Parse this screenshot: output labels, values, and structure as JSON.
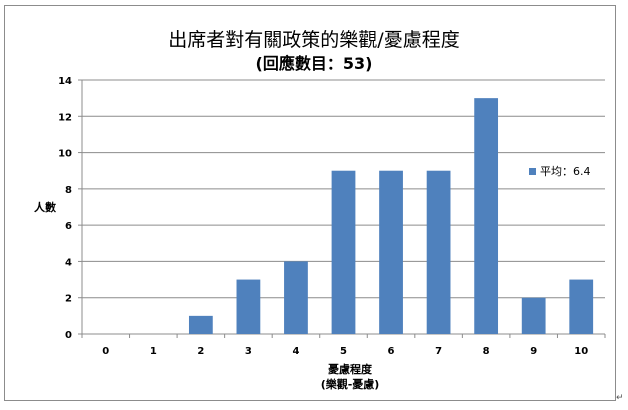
{
  "chart_data": {
    "type": "bar",
    "title": "出席者對有關政策的樂觀/憂慮程度",
    "subtitle": "(回應數目：53)",
    "xlabel": "憂慮程度",
    "xlabel_sub": "(樂觀-憂慮)",
    "ylabel": "人數",
    "categories": [
      "0",
      "1",
      "2",
      "3",
      "4",
      "5",
      "6",
      "7",
      "8",
      "9",
      "10"
    ],
    "values": [
      0,
      0,
      1,
      3,
      4,
      9,
      9,
      9,
      13,
      2,
      3
    ],
    "ylim": [
      0,
      14
    ],
    "yticks": [
      "0",
      "2",
      "4",
      "6",
      "8",
      "10",
      "12",
      "14"
    ],
    "grid": true,
    "legend_position": "right",
    "legend_text": "平均：6.4",
    "bar_color": "#4f81bd"
  },
  "corner_glyph": "↵"
}
